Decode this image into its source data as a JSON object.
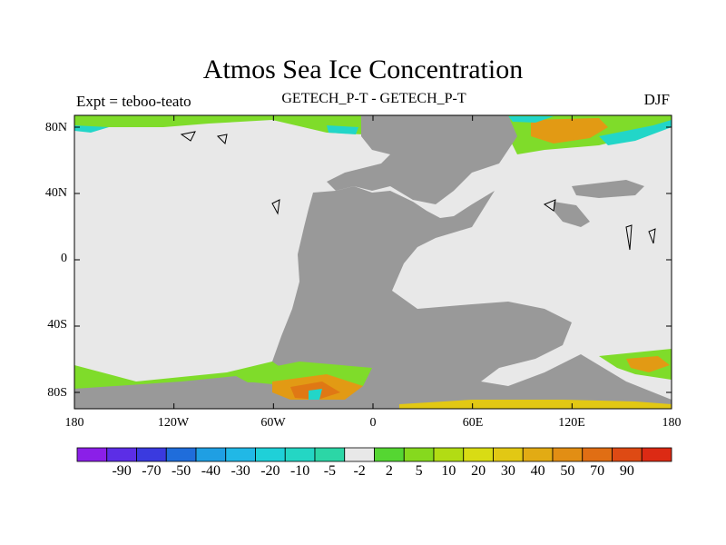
{
  "title": "Atmos Sea Ice Concentration",
  "experiment_label": "Expt = teboo-teato",
  "subtitle": "GETECH_P-T - GETECH_P-T",
  "season": "DJF",
  "lat_labels": [
    "80N",
    "40N",
    "0",
    "40S",
    "80S"
  ],
  "lon_labels": [
    "180",
    "120W",
    "60W",
    "0",
    "60E",
    "120E",
    "180"
  ],
  "colorbar": {
    "colors": [
      "#8b1fe8",
      "#5c2ee6",
      "#3a3adf",
      "#1f6ddb",
      "#1f9fe3",
      "#21b8e6",
      "#1fd0d8",
      "#24d6c4",
      "#2cd6a6",
      "#e8e8e8",
      "#55d632",
      "#86d91e",
      "#b2dc14",
      "#d9dc14",
      "#e2c814",
      "#e2ab14",
      "#e28e14",
      "#e06e14",
      "#de4a14",
      "#dc2a14"
    ],
    "labels": [
      "-90",
      "-70",
      "-50",
      "-40",
      "-30",
      "-20",
      "-10",
      "-5",
      "-2",
      "2",
      "5",
      "10",
      "20",
      "30",
      "40",
      "50",
      "70",
      "90"
    ]
  },
  "map_colors": {
    "ocean": "#e8e8e8",
    "land": "#999999",
    "ice_low": "#7fdc2a",
    "ice_mid": "#e2c814",
    "ice_high": "#e29a14",
    "ice_peak": "#e07814",
    "cyan": "#22d6c8"
  }
}
